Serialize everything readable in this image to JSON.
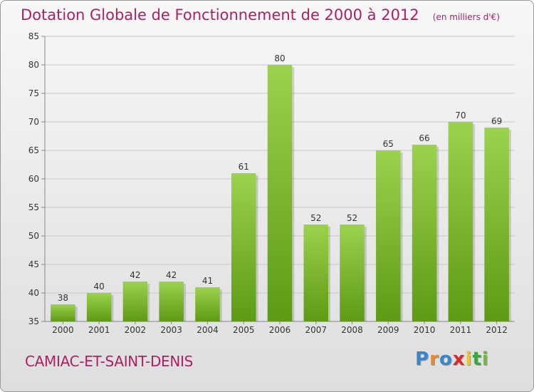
{
  "title": "Dotation Globale de Fonctionnement de 2000 à 2012",
  "unit": "(en milliers d'€)",
  "commune": "CAMIAC-ET-SAINT-DENIS",
  "logo": {
    "text": "Proxiti",
    "letter_colors": [
      "#3a86c8",
      "#e8892a",
      "#3a86c8",
      "#d62c2c",
      "#f0c419",
      "#3aa83a",
      "#6fb83a"
    ]
  },
  "colors": {
    "title": "#b01e63",
    "bar_top": "#9bd24e",
    "bar_bottom": "#5e9a14",
    "grid": "#c8c8c8"
  },
  "chart_data": {
    "type": "bar",
    "categories": [
      "2000",
      "2001",
      "2002",
      "2003",
      "2004",
      "2005",
      "2006",
      "2007",
      "2008",
      "2009",
      "2010",
      "2011",
      "2012"
    ],
    "values": [
      38,
      40,
      42,
      42,
      41,
      61,
      80,
      52,
      52,
      65,
      66,
      70,
      69
    ],
    "ylim": [
      35,
      85
    ],
    "yticks": [
      35,
      40,
      45,
      50,
      55,
      60,
      65,
      70,
      75,
      80,
      85
    ],
    "grid": true,
    "data_labels": true
  }
}
